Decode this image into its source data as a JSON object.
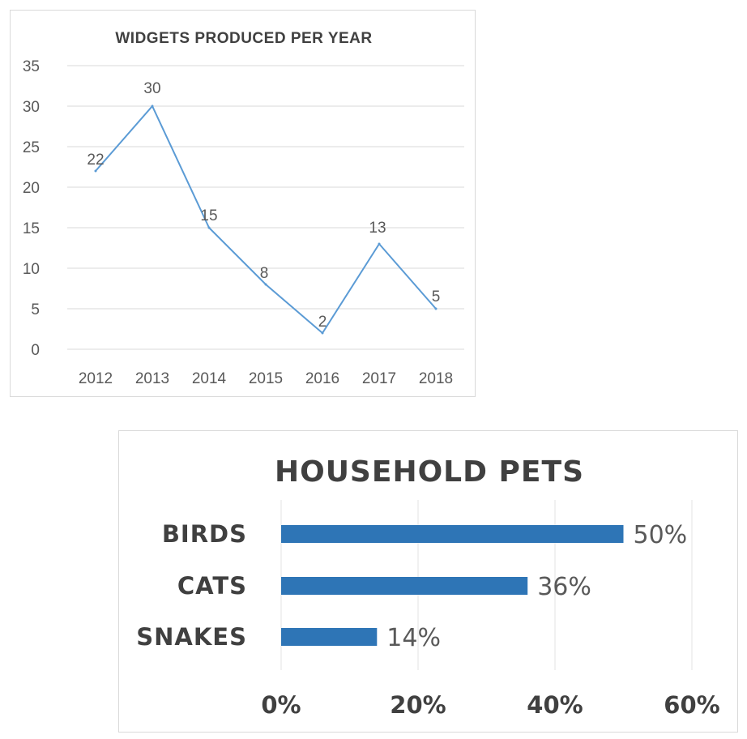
{
  "chart_data": [
    {
      "type": "line",
      "title": "WIDGETS PRODUCED PER YEAR",
      "x": [
        "2012",
        "2013",
        "2014",
        "2015",
        "2016",
        "2017",
        "2018"
      ],
      "series": [
        {
          "values": [
            22,
            30,
            15,
            8,
            2,
            13,
            5
          ]
        }
      ],
      "ylim": [
        0,
        35
      ],
      "yticks": [
        0,
        5,
        10,
        15,
        20,
        25,
        30,
        35
      ],
      "grid": true,
      "data_labels": true,
      "line_color": "#5b9bd5"
    },
    {
      "type": "bar",
      "orientation": "horizontal",
      "title": "HOUSEHOLD PETS",
      "categories": [
        "BIRDS",
        "CATS",
        "SNAKES"
      ],
      "values": [
        50,
        36,
        14
      ],
      "value_labels": [
        "50%",
        "36%",
        "14%"
      ],
      "xlim": [
        0,
        60
      ],
      "xticks": [
        "0%",
        "20%",
        "40%",
        "60%"
      ],
      "grid": true,
      "bar_color": "#2e75b6"
    }
  ]
}
